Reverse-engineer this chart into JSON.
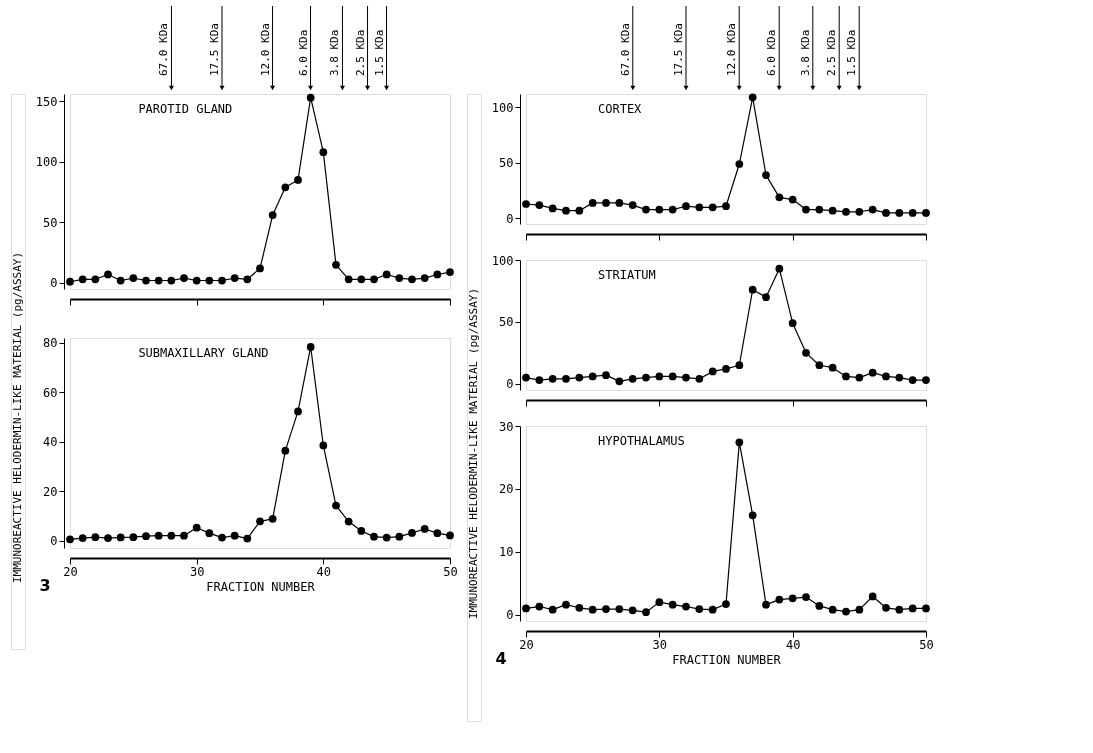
{
  "chart_data": [
    {
      "type": "line",
      "title": "PAROTID GLAND",
      "marker": "circle",
      "line_style": "solid",
      "grid": false,
      "tick_labels": "y",
      "x": [
        20,
        21,
        22,
        23,
        24,
        25,
        26,
        27,
        28,
        29,
        30,
        31,
        32,
        33,
        34,
        35,
        36,
        37,
        38,
        39,
        40,
        41,
        42,
        43,
        44,
        45,
        46,
        47,
        48,
        49,
        50
      ],
      "series": [
        {
          "color": "#000000",
          "values": [
            1,
            3,
            3,
            7,
            2,
            4,
            2,
            2,
            2,
            4,
            2,
            2,
            2,
            4,
            3,
            12,
            56,
            79,
            85,
            153,
            108,
            15,
            3,
            3,
            3,
            7,
            4,
            3,
            4,
            7,
            9
          ]
        }
      ],
      "xlim": [
        20,
        50
      ],
      "xticks": [
        20,
        30,
        40,
        50
      ],
      "ylim": [
        -5,
        156
      ],
      "yticks": [
        0,
        50,
        100,
        150
      ],
      "annotations": [
        "67.0 KDa",
        "17.5 KDa",
        "12.0 KDa",
        "6.0 KDa",
        "3.8 KDa",
        "2.5 KDa",
        "1.5 KDa"
      ]
    },
    {
      "type": "line",
      "title": "SUBMAXILLARY GLAND",
      "marker": "circle",
      "line_style": "solid",
      "grid": false,
      "xlabel": "FRACTION NUMBER",
      "ylabel": "IMMUNOREACTIVE HELODERMIN-LIKE MATERIAL (pg/ASSAY)",
      "x": [
        20,
        21,
        22,
        23,
        24,
        25,
        26,
        27,
        28,
        29,
        30,
        31,
        32,
        33,
        34,
        35,
        36,
        37,
        38,
        39,
        40,
        41,
        42,
        43,
        44,
        45,
        46,
        47,
        48,
        49,
        50
      ],
      "series": [
        {
          "color": "#000000",
          "values": [
            0.5,
            1,
            1.4,
            1,
            1.3,
            1.4,
            1.8,
            2,
            2,
            2,
            5.2,
            3,
            1.2,
            2,
            0.8,
            7.8,
            8.8,
            36.4,
            52.3,
            78.4,
            38.5,
            14.2,
            7.7,
            3.9,
            1.6,
            1.2,
            1.6,
            3.1,
            4.7,
            3,
            2.1
          ]
        }
      ],
      "xlim": [
        20,
        50
      ],
      "xticks": [
        20,
        30,
        40,
        50
      ],
      "ylim": [
        -3,
        82
      ],
      "yticks": [
        0,
        20,
        40,
        60,
        80
      ],
      "annotations": [
        "3"
      ]
    },
    {
      "type": "line",
      "title": "CORTEX",
      "marker": "circle",
      "line_style": "solid",
      "grid": false,
      "tick_labels": "y",
      "x": [
        20,
        21,
        22,
        23,
        24,
        25,
        26,
        27,
        28,
        29,
        30,
        31,
        32,
        33,
        34,
        35,
        36,
        37,
        38,
        39,
        40,
        41,
        42,
        43,
        44,
        45,
        46,
        47,
        48,
        49,
        50
      ],
      "series": [
        {
          "color": "#000000",
          "values": [
            13,
            12,
            9,
            7,
            7,
            14,
            14,
            14,
            12,
            8,
            8,
            8,
            11,
            10,
            10,
            11,
            49,
            109,
            39,
            19,
            17,
            8,
            8,
            7,
            6,
            6,
            8,
            5,
            5,
            5,
            5
          ]
        }
      ],
      "xlim": [
        20,
        50
      ],
      "xticks": [
        20,
        30,
        40,
        50
      ],
      "ylim": [
        -5,
        112
      ],
      "yticks": [
        0,
        50,
        100
      ],
      "annotations": [
        "67.0 KDa",
        "17.5 KDa",
        "12.0 KDa",
        "6.0 KDa",
        "3.8 KDa",
        "2.5 KDa",
        "1.5 KDa"
      ]
    },
    {
      "type": "line",
      "title": "STRIATUM",
      "marker": "circle",
      "line_style": "solid",
      "grid": false,
      "tick_labels": "y",
      "ylabel": "IMMUNOREACTIVE HELODERMIN-LIKE MATERIAL (pg/ASSAY)",
      "x": [
        20,
        21,
        22,
        23,
        24,
        25,
        26,
        27,
        28,
        29,
        30,
        31,
        32,
        33,
        34,
        35,
        36,
        37,
        38,
        39,
        40,
        41,
        42,
        43,
        44,
        45,
        46,
        47,
        48,
        49,
        50
      ],
      "series": [
        {
          "color": "#000000",
          "values": [
            5,
            3,
            4,
            4,
            5,
            6,
            7,
            2,
            4,
            5,
            6,
            6,
            5,
            4,
            10,
            12,
            15,
            76,
            70,
            93,
            49,
            25,
            15,
            13,
            6,
            5,
            9,
            6,
            5,
            3,
            3
          ]
        }
      ],
      "xlim": [
        20,
        50
      ],
      "xticks": [
        20,
        30,
        40,
        50
      ],
      "ylim": [
        -5,
        100
      ],
      "yticks": [
        0,
        50,
        100
      ]
    },
    {
      "type": "line",
      "title": "HYPOTHALAMUS",
      "marker": "circle",
      "line_style": "solid",
      "grid": false,
      "xlabel": "FRACTION NUMBER",
      "x": [
        20,
        21,
        22,
        23,
        24,
        25,
        26,
        27,
        28,
        29,
        30,
        31,
        32,
        33,
        34,
        35,
        36,
        37,
        38,
        39,
        40,
        41,
        42,
        43,
        44,
        45,
        46,
        47,
        48,
        49,
        50
      ],
      "series": [
        {
          "color": "#000000",
          "values": [
            1,
            1.3,
            0.8,
            1.6,
            1.1,
            0.8,
            0.9,
            0.9,
            0.7,
            0.4,
            2,
            1.6,
            1.3,
            0.9,
            0.8,
            1.7,
            27.4,
            15.8,
            1.6,
            2.4,
            2.6,
            2.8,
            1.4,
            0.8,
            0.5,
            0.8,
            2.9,
            1.1,
            0.8,
            1,
            1
          ]
        }
      ],
      "xlim": [
        20,
        50
      ],
      "xticks": [
        20,
        30,
        40,
        50
      ],
      "ylim": [
        -1,
        30
      ],
      "yticks": [
        0,
        10,
        20,
        30
      ],
      "annotations": [
        "4"
      ]
    }
  ]
}
